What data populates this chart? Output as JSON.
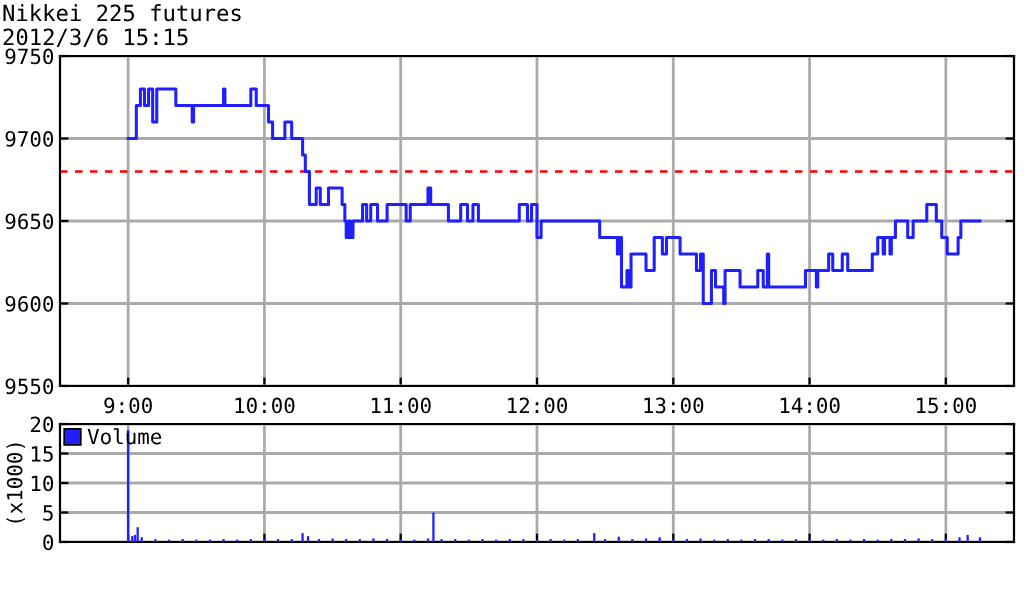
{
  "chart_data": [
    {
      "type": "step",
      "title": "Nikkei 225 futures",
      "subtitle": "2012/3/6 15:15",
      "xlim": [
        8.5,
        15.5
      ],
      "xticks": [
        {
          "value": 9,
          "label": "9:00"
        },
        {
          "value": 10,
          "label": "10:00"
        },
        {
          "value": 11,
          "label": "11:00"
        },
        {
          "value": 12,
          "label": "12:00"
        },
        {
          "value": 13,
          "label": "13:00"
        },
        {
          "value": 14,
          "label": "14:00"
        },
        {
          "value": 15,
          "label": "15:00"
        }
      ],
      "ylim": [
        9550,
        9750
      ],
      "yticks": [
        9550,
        9600,
        9650,
        9700,
        9750
      ],
      "grid": true,
      "ref_lines": [
        {
          "axis": "y",
          "value": 9680,
          "color": "#ff0000",
          "line_style": "dashed"
        }
      ],
      "series": [
        {
          "color": "#2020ff",
          "x": [
            9.0,
            9.06,
            9.09,
            9.12,
            9.15,
            9.18,
            9.21,
            9.35,
            9.47,
            9.48,
            9.7,
            9.71,
            9.9,
            9.94,
            10.03,
            10.06,
            10.15,
            10.2,
            10.28,
            10.3,
            10.33,
            10.38,
            10.41,
            10.47,
            10.57,
            10.59,
            10.6,
            10.62,
            10.63,
            10.65,
            10.72,
            10.75,
            10.78,
            10.83,
            10.9,
            11.04,
            11.07,
            11.2,
            11.22,
            11.35,
            11.44,
            11.49,
            11.53,
            11.57,
            11.87,
            11.93,
            11.96,
            12.0,
            12.03,
            12.46,
            12.59,
            12.6,
            12.62,
            12.66,
            12.67,
            12.69,
            12.8,
            12.86,
            12.92,
            12.95,
            13.05,
            13.17,
            13.2,
            13.22,
            13.28,
            13.31,
            13.37,
            13.38,
            13.49,
            13.62,
            13.66,
            13.69,
            13.7,
            13.97,
            14.05,
            14.06,
            14.14,
            14.17,
            14.24,
            14.28,
            14.46,
            14.5,
            14.54,
            14.55,
            14.59,
            14.6,
            14.63,
            14.72,
            14.76,
            14.86,
            14.93,
            14.97,
            15.01,
            15.09,
            15.11,
            15.25
          ],
          "values": [
            9700,
            9720,
            9730,
            9720,
            9730,
            9710,
            9730,
            9720,
            9710,
            9720,
            9730,
            9720,
            9730,
            9720,
            9710,
            9700,
            9710,
            9700,
            9690,
            9680,
            9660,
            9670,
            9660,
            9670,
            9660,
            9650,
            9640,
            9650,
            9640,
            9650,
            9660,
            9650,
            9660,
            9650,
            9660,
            9650,
            9660,
            9670,
            9660,
            9650,
            9660,
            9650,
            9660,
            9650,
            9660,
            9650,
            9660,
            9640,
            9650,
            9640,
            9630,
            9640,
            9610,
            9620,
            9610,
            9630,
            9620,
            9640,
            9630,
            9640,
            9630,
            9620,
            9630,
            9600,
            9620,
            9610,
            9600,
            9620,
            9610,
            9620,
            9610,
            9630,
            9610,
            9620,
            9610,
            9620,
            9630,
            9620,
            9630,
            9620,
            9630,
            9640,
            9630,
            9640,
            9630,
            9640,
            9650,
            9640,
            9650,
            9660,
            9650,
            9640,
            9630,
            9640,
            9650,
            9650
          ]
        }
      ]
    },
    {
      "type": "bar",
      "ylabel": "(x1000)",
      "xlim": [
        8.5,
        15.5
      ],
      "xticks": [
        {
          "value": 9,
          "label": null
        },
        {
          "value": 10,
          "label": null
        },
        {
          "value": 11,
          "label": null
        },
        {
          "value": 12,
          "label": null
        },
        {
          "value": 13,
          "label": null
        },
        {
          "value": 14,
          "label": null
        },
        {
          "value": 15,
          "label": null
        }
      ],
      "ylim": [
        0,
        20
      ],
      "yticks": [
        0,
        5,
        10,
        15,
        20
      ],
      "grid": true,
      "tick_labels": "y",
      "legend": "top left",
      "series": [
        {
          "name": "Volume",
          "color": "#2020ff",
          "x": [
            9.0,
            9.03,
            9.05,
            9.07,
            9.1,
            9.2,
            9.3,
            9.4,
            9.5,
            9.6,
            9.7,
            9.8,
            9.9,
            10.0,
            10.1,
            10.2,
            10.28,
            10.32,
            10.4,
            10.5,
            10.6,
            10.7,
            10.8,
            10.9,
            11.0,
            11.1,
            11.2,
            11.24,
            11.3,
            11.4,
            11.5,
            11.6,
            11.7,
            11.8,
            11.9,
            12.0,
            12.1,
            12.2,
            12.3,
            12.42,
            12.5,
            12.6,
            12.7,
            12.8,
            12.9,
            13.0,
            13.1,
            13.2,
            13.3,
            13.4,
            13.5,
            13.6,
            13.7,
            13.8,
            13.9,
            14.0,
            14.1,
            14.2,
            14.3,
            14.4,
            14.5,
            14.6,
            14.7,
            14.8,
            14.9,
            15.0,
            15.1,
            15.16,
            15.25
          ],
          "values": [
            19,
            1,
            1.2,
            2.5,
            0.8,
            0.5,
            0.4,
            0.5,
            0.4,
            0.4,
            0.5,
            0.4,
            0.5,
            0.6,
            0.5,
            0.5,
            1.5,
            1,
            0.5,
            0.6,
            0.5,
            0.5,
            0.6,
            0.5,
            0.5,
            0.4,
            0.6,
            5,
            0.5,
            0.5,
            0.4,
            0.5,
            0.4,
            0.5,
            0.5,
            0.4,
            0.5,
            0.4,
            0.5,
            1.5,
            0.5,
            0.9,
            0.5,
            0.6,
            0.8,
            0.5,
            0.5,
            0.6,
            0.4,
            0.5,
            0.4,
            0.5,
            0.5,
            0.4,
            0.5,
            0.5,
            0.4,
            0.5,
            0.4,
            0.5,
            0.4,
            0.5,
            0.5,
            0.6,
            0.5,
            0.6,
            0.8,
            1.2,
            0.8
          ]
        }
      ]
    }
  ]
}
